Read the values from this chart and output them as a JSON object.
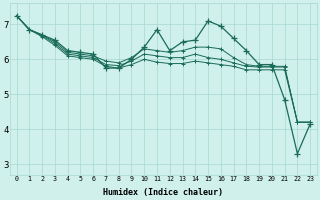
{
  "xlabel": "Humidex (Indice chaleur)",
  "bg_color": "#cff0eb",
  "grid_color": "#a8d8d0",
  "line_color": "#1a6b5a",
  "xlim": [
    -0.5,
    23.5
  ],
  "ylim": [
    2.7,
    7.6
  ],
  "xtick_labels": [
    "0",
    "1",
    "2",
    "3",
    "4",
    "5",
    "6",
    "7",
    "8",
    "9",
    "10",
    "11",
    "12",
    "13",
    "14",
    "15",
    "16",
    "17",
    "18",
    "19",
    "20",
    "21",
    "22",
    "23"
  ],
  "ytick_values": [
    3,
    4,
    5,
    6,
    7
  ],
  "series": [
    [
      7.25,
      6.85,
      6.7,
      6.55,
      6.25,
      6.2,
      6.15,
      5.75,
      5.75,
      6.0,
      6.35,
      6.85,
      6.25,
      6.5,
      6.55,
      7.1,
      6.95,
      6.6,
      6.25,
      5.85,
      5.85,
      4.85,
      3.3,
      4.15
    ],
    [
      7.25,
      6.85,
      6.7,
      6.5,
      6.2,
      6.15,
      6.1,
      5.95,
      5.9,
      6.05,
      6.3,
      6.25,
      6.2,
      6.25,
      6.35,
      6.35,
      6.3,
      6.05,
      5.85,
      5.8,
      5.8,
      5.8,
      4.2,
      4.2
    ],
    [
      7.25,
      6.85,
      6.68,
      6.45,
      6.15,
      6.1,
      6.05,
      5.85,
      5.82,
      5.95,
      6.15,
      6.1,
      6.05,
      6.05,
      6.15,
      6.05,
      6.0,
      5.9,
      5.8,
      5.78,
      5.78,
      5.78,
      4.2,
      4.2
    ],
    [
      7.25,
      6.85,
      6.65,
      6.4,
      6.1,
      6.05,
      6.0,
      5.8,
      5.75,
      5.85,
      6.0,
      5.92,
      5.88,
      5.88,
      5.95,
      5.9,
      5.85,
      5.8,
      5.7,
      5.7,
      5.7,
      5.7,
      4.2,
      4.2
    ]
  ]
}
